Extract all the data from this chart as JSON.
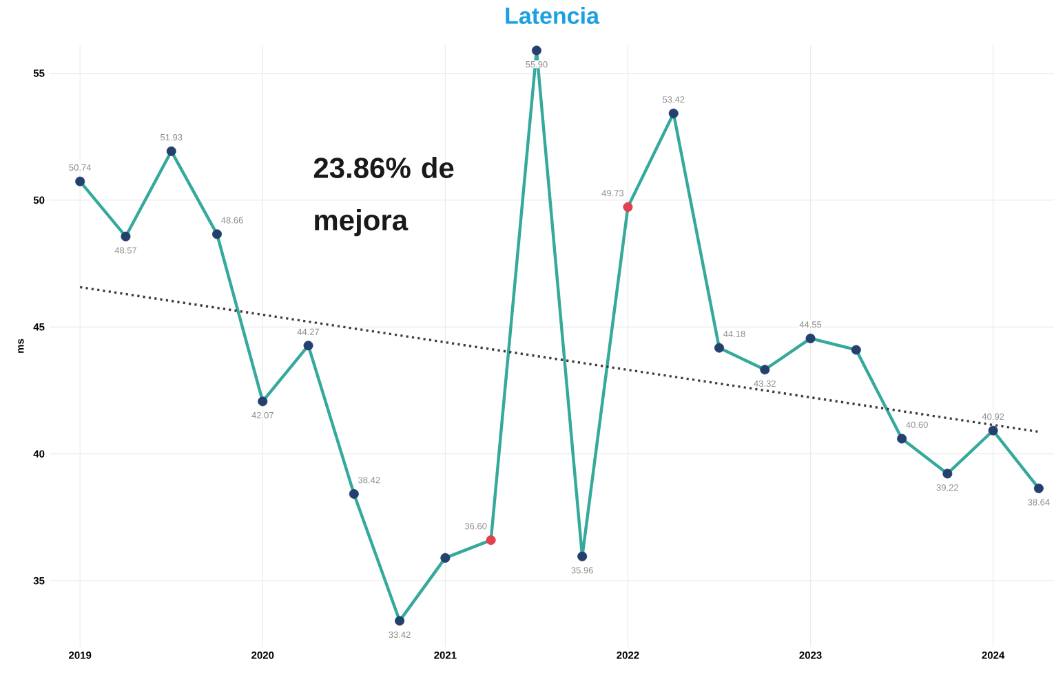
{
  "chart_data": {
    "type": "line",
    "title": "Latencia",
    "ylabel": "ms",
    "annotations": [
      "23.86% de mejora"
    ],
    "x": [
      "2019-01",
      "2019-04",
      "2019-07",
      "2019-10",
      "2020-01",
      "2020-04",
      "2020-07",
      "2020-10",
      "2021-01",
      "2021-04",
      "2021-07",
      "2021-10",
      "2022-01",
      "2022-04",
      "2022-07",
      "2022-10",
      "2023-01",
      "2023-04",
      "2023-07",
      "2023-10",
      "2024-01",
      "2024-04"
    ],
    "series": [
      {
        "color": "#35a99c",
        "colors": [
          "#23406e",
          "#23406e",
          "#23406e",
          "#23406e",
          "#23406e",
          "#23406e",
          "#23406e",
          "#23406e",
          "#23406e",
          "#e0404f",
          "#23406e",
          "#23406e",
          "#e0404f",
          "#23406e",
          "#23406e",
          "#23406e",
          "#23406e",
          "#23406e",
          "#23406e",
          "#23406e",
          "#23406e",
          "#23406e"
        ],
        "values": [
          50.74,
          48.57,
          51.93,
          48.66,
          42.07,
          44.27,
          38.42,
          33.42,
          35.9,
          36.6,
          55.9,
          35.96,
          49.73,
          53.42,
          44.18,
          43.32,
          44.55,
          44.1,
          40.6,
          39.22,
          40.92,
          38.64
        ],
        "value_labels": [
          "50.74",
          "48.57",
          "51.93",
          "48.66",
          "42.07",
          "44.27",
          "38.42",
          "33.42",
          null,
          "36.60",
          "55.90",
          "35.96",
          "49.73",
          "53.42",
          "44.18",
          "43.32",
          "44.55",
          null,
          "40.60",
          "39.22",
          "40.92",
          "38.64"
        ]
      },
      {
        "type": "line",
        "x": [
          "2019-01",
          "2024-04"
        ],
        "values": [
          46.57,
          40.87
        ],
        "color": "#3c3c3c",
        "line_style": "dotted",
        "marker": "none"
      }
    ],
    "xlim": [
      "2018-11",
      "2024-05"
    ],
    "xticks": [
      "2019",
      "2020",
      "2021",
      "2022",
      "2023",
      "2024"
    ],
    "ylim": [
      32.4,
      56.1
    ],
    "yticks": [
      35,
      40,
      45,
      50,
      55
    ],
    "grid": true,
    "marker": "circle",
    "line_style": "solid"
  }
}
